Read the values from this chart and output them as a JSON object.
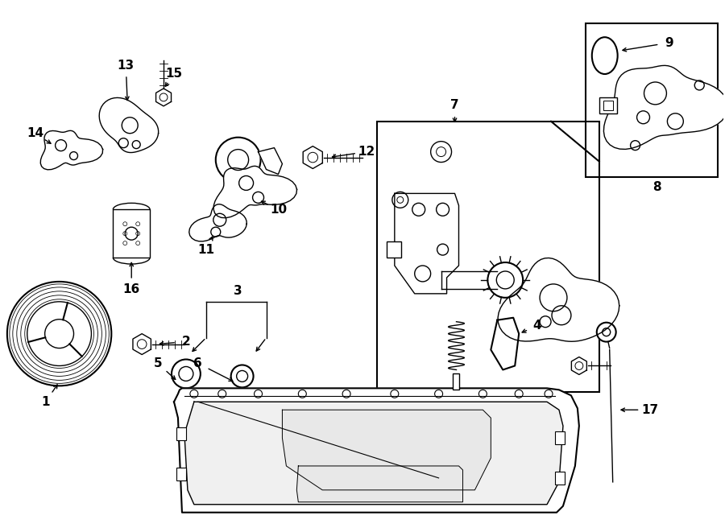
{
  "bg_color": "#ffffff",
  "lc": "#000000",
  "figsize": [
    9.0,
    6.61
  ],
  "dpi": 100,
  "lw": 1.0,
  "lw2": 1.5,
  "fs": 11
}
